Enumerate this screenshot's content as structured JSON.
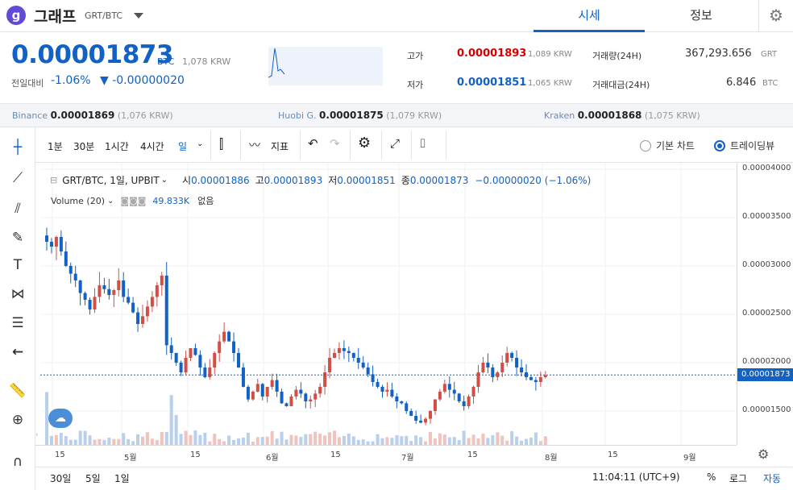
{
  "header": {
    "logo_letter": "g",
    "coin_name": "그래프",
    "pair": "GRT/BTC",
    "tabs": [
      "시세",
      "정보"
    ]
  },
  "summary": {
    "price": "0.00001873",
    "unit": "BTC",
    "price_krw": "1,078 KRW",
    "change_label": "전일대비",
    "change_pct": "-1.06%",
    "change_abs": "▼ -0.00000020",
    "high_label": "고가",
    "high_value": "0.00001893",
    "high_krw": "1,089 KRW",
    "low_label": "저가",
    "low_value": "0.00001851",
    "low_krw": "1,065 KRW",
    "volume_label": "거래량(24H)",
    "volume_value": "367,293.656",
    "volume_unit": "GRT",
    "amount_label": "거래대금(24H)",
    "amount_value": "6.846",
    "amount_unit": "BTC"
  },
  "exchanges": [
    {
      "name": "Binance",
      "price": "0.00001869",
      "krw": "(1,076 KRW)"
    },
    {
      "name": "Huobi G.",
      "price": "0.00001875",
      "krw": "(1,079 KRW)"
    },
    {
      "name": "Kraken",
      "price": "0.00001868",
      "krw": "(1,075 KRW)"
    }
  ],
  "toolbar": {
    "intervals": [
      "1분",
      "30분",
      "1시간",
      "4시간",
      "일"
    ],
    "indicator_label": "지표",
    "basic_chart": "기본 차트",
    "tradingview": "트레이딩뷰"
  },
  "legend": {
    "title": "GRT/BTC, 1일, UPBIT",
    "o_label": "시",
    "o": "0.00001886",
    "h_label": "고",
    "h": "0.00001893",
    "l_label": "저",
    "l": "0.00001851",
    "c_label": "종",
    "c": "0.00001873",
    "change": "−0.00000020 (−1.06%)",
    "volume_title": "Volume (20)",
    "volume_value": "49.833K",
    "volume_extra": "없음"
  },
  "price_tag": "0.00001873",
  "bottom": {
    "ranges": [
      "30일",
      "5일",
      "1일"
    ],
    "time": "11:04:11 (UTC+9)",
    "percent": "%",
    "log": "로그",
    "auto": "자동"
  },
  "colors": {
    "up": "#d24f45",
    "down": "#1261c4",
    "accent": "#1261c4"
  },
  "chart_data": {
    "type": "candlestick",
    "y_ticks": [
      "0.00004000",
      "0.00003500",
      "0.00003000",
      "0.00002500",
      "0.00002000",
      "0.00001500"
    ],
    "x_ticks": [
      "15",
      "5월",
      "15",
      "6월",
      "15",
      "7월",
      "15",
      "8월",
      "15",
      "9월"
    ],
    "ylim": [
      1.15e-05,
      4e-05
    ],
    "close_path": [
      3.25e-05,
      3.2e-05,
      3.3e-05,
      3.15e-05,
      3e-05,
      2.92e-05,
      2.85e-05,
      2.72e-05,
      2.65e-05,
      2.55e-05,
      2.68e-05,
      2.8e-05,
      2.76e-05,
      2.7e-05,
      2.75e-05,
      2.85e-05,
      2.68e-05,
      2.62e-05,
      2.52e-05,
      2.4e-05,
      2.48e-05,
      2.58e-05,
      2.68e-05,
      2.8e-05,
      2.9e-05,
      2.18e-05,
      2.1e-05,
      2e-05,
      1.9e-05,
      2.05e-05,
      2.15e-05,
      2.08e-05,
      1.95e-05,
      1.85e-05,
      1.95e-05,
      2.1e-05,
      2.22e-05,
      2.32e-05,
      2.22e-05,
      2.1e-05,
      1.95e-05,
      1.75e-05,
      1.62e-05,
      1.7e-05,
      1.78e-05,
      1.65e-05,
      1.75e-05,
      1.82e-05,
      1.7e-05,
      1.58e-05,
      1.55e-05,
      1.65e-05,
      1.72e-05,
      1.68e-05,
      1.6e-05,
      1.62e-05,
      1.68e-05,
      1.75e-05,
      1.9e-05,
      2.05e-05,
      2.1e-05,
      2.15e-05,
      2.12e-05,
      2.1e-05,
      2.05e-05,
      2e-05,
      1.95e-05,
      1.88e-05,
      1.8e-05,
      1.75e-05,
      1.7e-05,
      1.72e-05,
      1.65e-05,
      1.6e-05,
      1.58e-05,
      1.5e-05,
      1.45e-05,
      1.4e-05,
      1.38e-05,
      1.42e-05,
      1.5e-05,
      1.62e-05,
      1.7e-05,
      1.78e-05,
      1.72e-05,
      1.68e-05,
      1.6e-05,
      1.55e-05,
      1.65e-05,
      1.75e-05,
      1.9e-05,
      2e-05,
      1.95e-05,
      1.85e-05,
      1.9e-05,
      2e-05,
      2.1e-05,
      2.05e-05,
      1.95e-05,
      1.9e-05,
      1.85e-05,
      1.82e-05,
      1.8e-05,
      1.85e-05,
      1.87e-05
    ]
  }
}
